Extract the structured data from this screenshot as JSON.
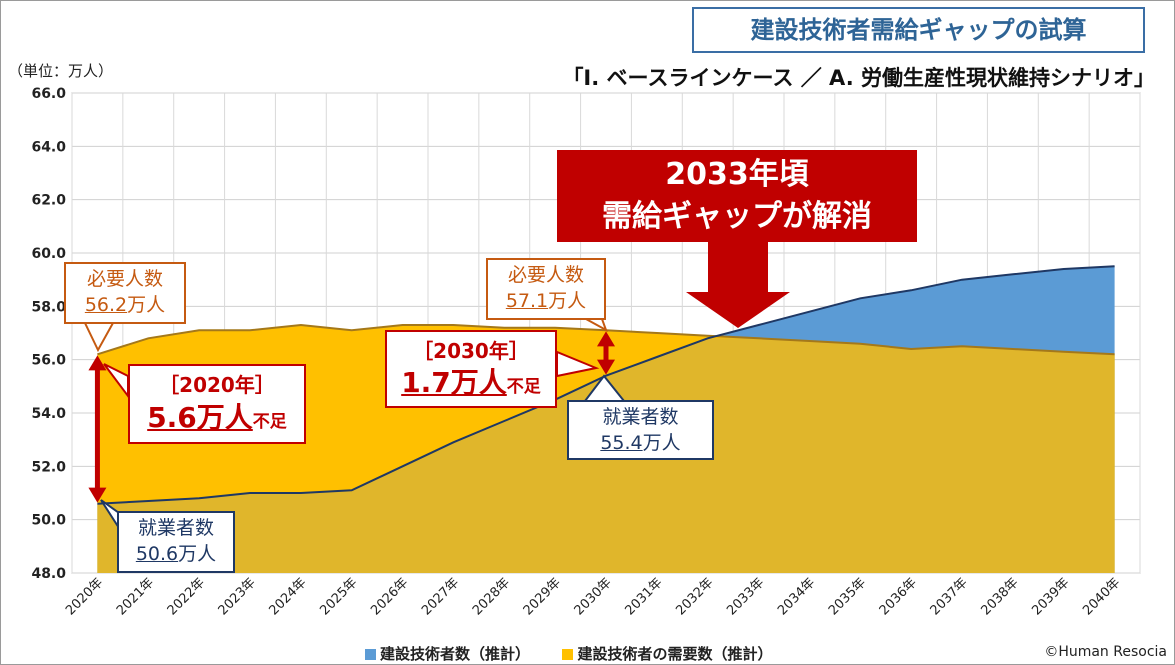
{
  "title": "建設技術者需給ギャップの試算",
  "subtitle": "「Ⅰ. ベースラインケース ／ A. 労働生産性現状維持シナリオ」",
  "unit_label": "（単位：万人）",
  "banner": {
    "line1": "2033年頃",
    "line2": "需給ギャップが解消"
  },
  "callouts": {
    "req2020": {
      "label": "必要人数",
      "value": "56.2",
      "unit": "万人"
    },
    "emp2020": {
      "label": "就業者数",
      "value": "50.6",
      "unit": "万人"
    },
    "req2030": {
      "label": "必要人数",
      "value": "57.1",
      "unit": "万人"
    },
    "emp2030": {
      "label": "就業者数",
      "value": "55.4",
      "unit": "万人"
    },
    "gap2020": {
      "year": "［2020年］",
      "value": "5.6万人",
      "suffix": "不足"
    },
    "gap2030": {
      "year": "［2030年］",
      "value": "1.7万人",
      "suffix": "不足"
    }
  },
  "legend": {
    "supply": "建設技術者数（推計）",
    "demand": "建設技術者の需要数（推計）"
  },
  "copyright": "©Human Resocia",
  "colors": {
    "supply": "#5b9bd5",
    "demand": "#ffc000",
    "overlap": "#e0b62b",
    "arrow": "#c00000",
    "line": "#1f3864"
  },
  "chart_data": {
    "type": "area",
    "x": [
      "2020年",
      "2021年",
      "2022年",
      "2023年",
      "2024年",
      "2025年",
      "2026年",
      "2027年",
      "2028年",
      "2029年",
      "2030年",
      "2031年",
      "2032年",
      "2033年",
      "2034年",
      "2035年",
      "2036年",
      "2037年",
      "2038年",
      "2039年",
      "2040年"
    ],
    "series": [
      {
        "name": "建設技術者数（推計）",
        "values": [
          50.6,
          50.7,
          50.8,
          51.0,
          51.0,
          51.1,
          52.0,
          52.9,
          53.7,
          54.5,
          55.4,
          56.1,
          56.8,
          57.3,
          57.8,
          58.3,
          58.6,
          59.0,
          59.2,
          59.4,
          59.5
        ]
      },
      {
        "name": "建設技術者の需要数（推計）",
        "values": [
          56.2,
          56.8,
          57.1,
          57.1,
          57.3,
          57.1,
          57.3,
          57.3,
          57.2,
          57.2,
          57.1,
          57.0,
          56.9,
          56.8,
          56.7,
          56.6,
          56.4,
          56.5,
          56.4,
          56.3,
          56.2
        ]
      }
    ],
    "ylim": [
      48.0,
      66.0
    ],
    "yticks": [
      "48.0",
      "50.0",
      "52.0",
      "54.0",
      "56.0",
      "58.0",
      "60.0",
      "62.0",
      "64.0",
      "66.0"
    ],
    "grid": true,
    "legend_position": "bottom"
  }
}
